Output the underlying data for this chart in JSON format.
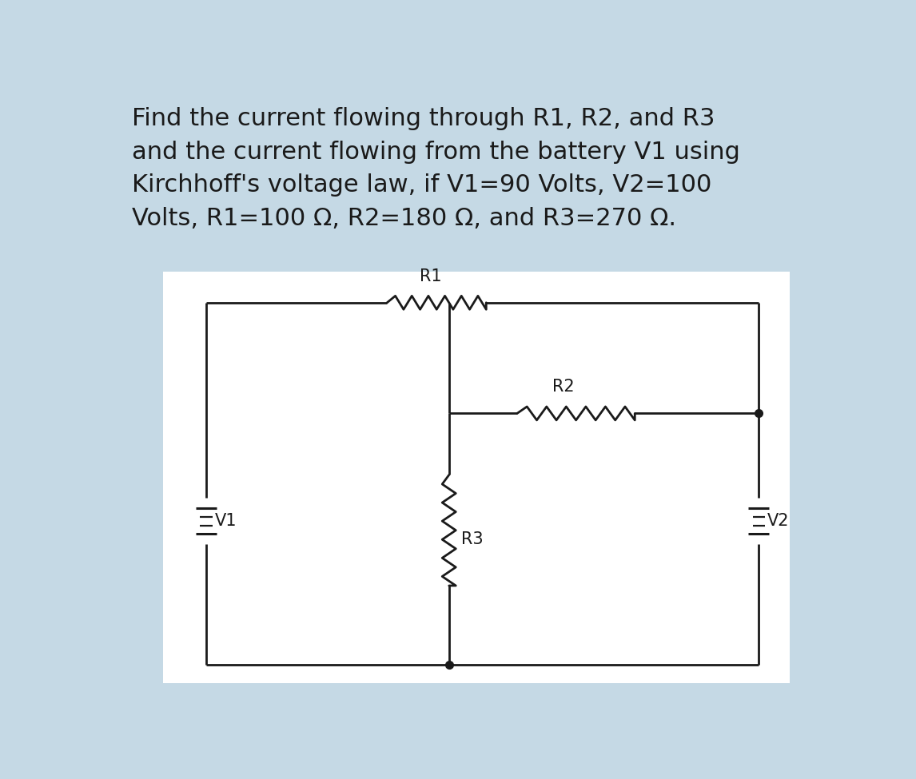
{
  "bg_color": "#c5d9e5",
  "diagram_bg": "#ffffff",
  "line_color": "#1a1a1a",
  "text_color": "#1a1a1a",
  "title_text": "Find the current flowing through R1, R2, and R3\nand the current flowing from the battery V1 using\nKirchhoff's voltage law, if V1=90 Volts, V2=100\nVolts, R1=100 Ω, R2=180 Ω, and R3=270 Ω.",
  "title_fontsize": 22,
  "label_fontsize": 15,
  "lw": 2.0
}
